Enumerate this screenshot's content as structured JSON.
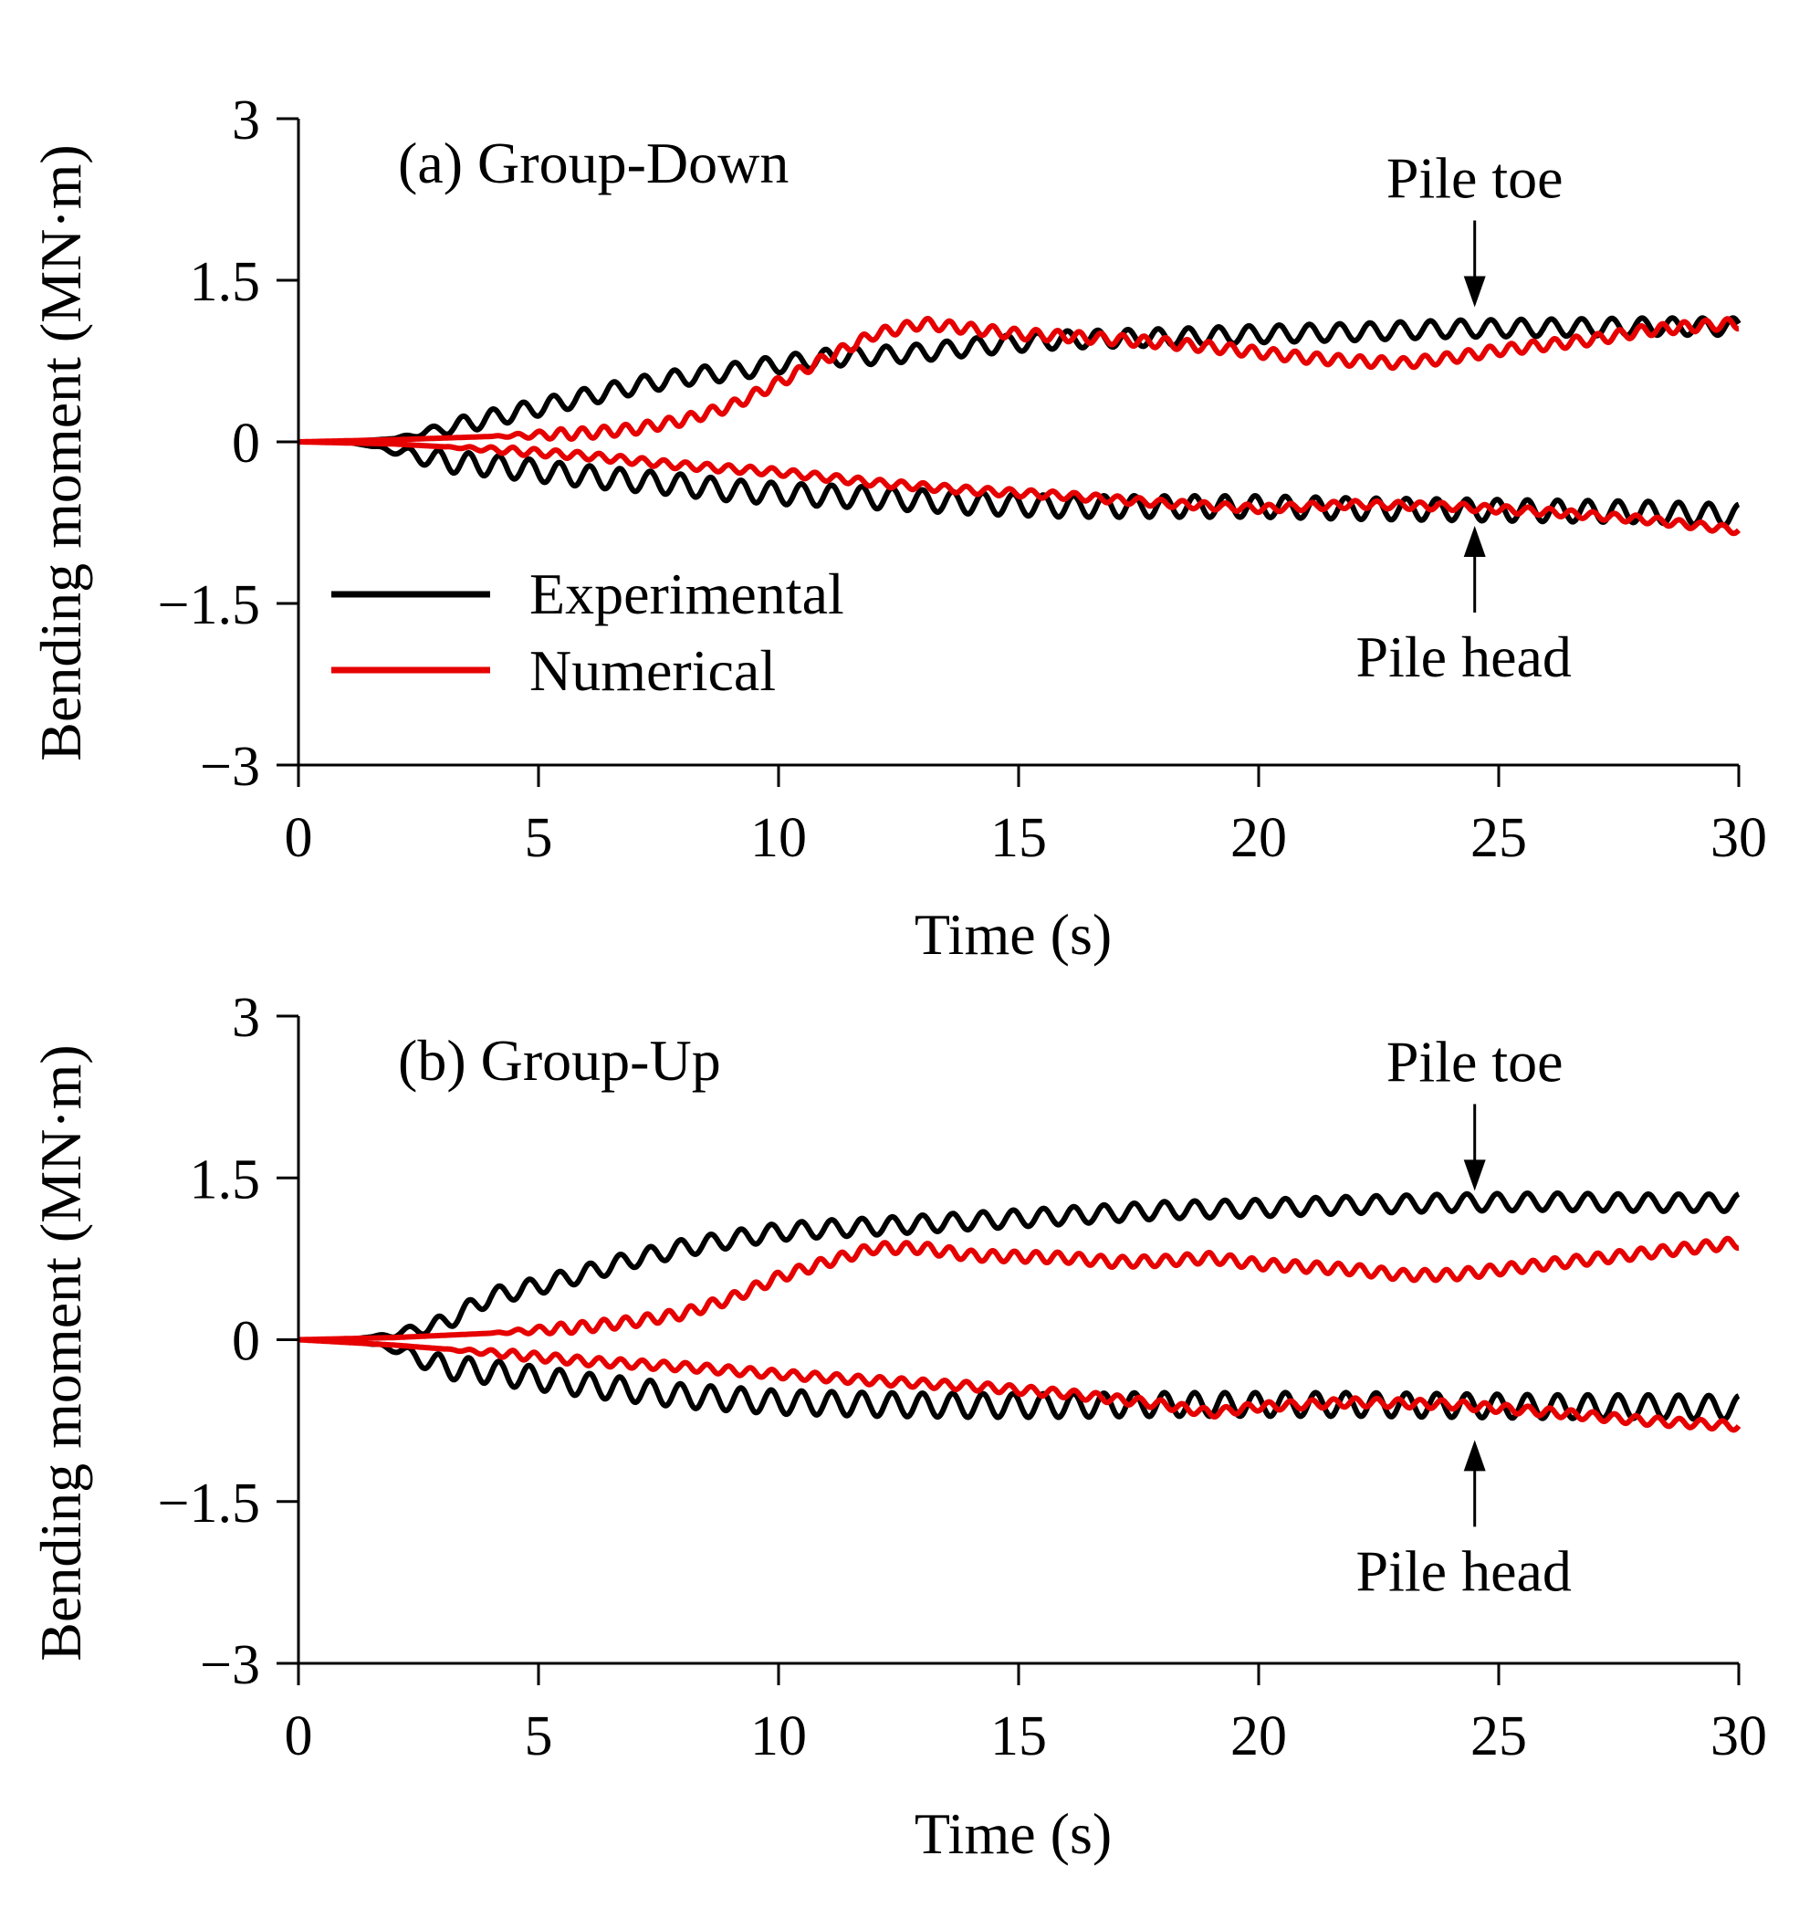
{
  "chart_data": [
    {
      "type": "line",
      "panel_label": "(a) Group-Down",
      "xlabel": "Time (s)",
      "ylabel": "Bending moment (MN·m)",
      "xlim": [
        0,
        30
      ],
      "ylim": [
        -3,
        3
      ],
      "xticks": [
        0,
        5,
        10,
        15,
        20,
        25,
        30
      ],
      "yticks": [
        3,
        1.5,
        0,
        -1.5,
        -3
      ],
      "ytick_labels": [
        "3",
        "1.5",
        "0",
        "−1.5",
        "−3"
      ],
      "grid": false,
      "legend": {
        "placement": "lower-left",
        "entries": [
          {
            "label": "Experimental",
            "color": "#000000"
          },
          {
            "label": "Numerical",
            "color": "#e60000"
          }
        ]
      },
      "annotations": [
        {
          "text": "Pile toe",
          "x": 24.5,
          "y": 1.25,
          "arrow": "down"
        },
        {
          "text": "Pile head",
          "x": 24.5,
          "y": -0.78,
          "arrow": "up"
        }
      ],
      "series": [
        {
          "group": "Experimental",
          "location": "Pile toe",
          "color": "#000000",
          "osc_amp": 0.08,
          "osc_period": 0.63,
          "osc_start": 2.0,
          "points": [
            [
              0,
              0
            ],
            [
              1,
              0
            ],
            [
              2,
              0.03
            ],
            [
              3,
              0.12
            ],
            [
              4,
              0.22
            ],
            [
              5,
              0.32
            ],
            [
              6,
              0.42
            ],
            [
              7,
              0.52
            ],
            [
              8,
              0.6
            ],
            [
              9,
              0.65
            ],
            [
              10,
              0.72
            ],
            [
              11,
              0.78
            ],
            [
              12,
              0.8
            ],
            [
              13,
              0.83
            ],
            [
              14,
              0.88
            ],
            [
              15,
              0.92
            ],
            [
              16,
              0.95
            ],
            [
              18,
              0.97
            ],
            [
              20,
              1.0
            ],
            [
              22,
              1.02
            ],
            [
              24,
              1.05
            ],
            [
              26,
              1.06
            ],
            [
              28,
              1.07
            ],
            [
              30,
              1.07
            ]
          ]
        },
        {
          "group": "Experimental",
          "location": "Pile head",
          "color": "#000000",
          "osc_amp": 0.1,
          "osc_period": 0.63,
          "osc_start": 1.5,
          "points": [
            [
              0,
              0
            ],
            [
              1,
              0
            ],
            [
              2,
              -0.08
            ],
            [
              3,
              -0.18
            ],
            [
              4,
              -0.22
            ],
            [
              5,
              -0.27
            ],
            [
              6,
              -0.32
            ],
            [
              7,
              -0.36
            ],
            [
              8,
              -0.4
            ],
            [
              9,
              -0.45
            ],
            [
              10,
              -0.48
            ],
            [
              12,
              -0.52
            ],
            [
              14,
              -0.57
            ],
            [
              16,
              -0.6
            ],
            [
              18,
              -0.6
            ],
            [
              20,
              -0.6
            ],
            [
              22,
              -0.62
            ],
            [
              24,
              -0.63
            ],
            [
              26,
              -0.64
            ],
            [
              28,
              -0.65
            ],
            [
              30,
              -0.68
            ]
          ]
        },
        {
          "group": "Numerical",
          "location": "Pile toe",
          "color": "#e60000",
          "osc_amp": 0.05,
          "osc_period": 0.45,
          "osc_start": 4.0,
          "points": [
            [
              0,
              0
            ],
            [
              2,
              0.02
            ],
            [
              4,
              0.05
            ],
            [
              6,
              0.08
            ],
            [
              7,
              0.12
            ],
            [
              8,
              0.2
            ],
            [
              9,
              0.33
            ],
            [
              10,
              0.55
            ],
            [
              11,
              0.78
            ],
            [
              12,
              1.0
            ],
            [
              13,
              1.1
            ],
            [
              14,
              1.05
            ],
            [
              15,
              1.0
            ],
            [
              16,
              0.98
            ],
            [
              17,
              0.95
            ],
            [
              18,
              0.92
            ],
            [
              19,
              0.88
            ],
            [
              20,
              0.83
            ],
            [
              21,
              0.78
            ],
            [
              22,
              0.75
            ],
            [
              23,
              0.73
            ],
            [
              24,
              0.78
            ],
            [
              25,
              0.85
            ],
            [
              26,
              0.9
            ],
            [
              27,
              0.95
            ],
            [
              28,
              1.03
            ],
            [
              29,
              1.07
            ],
            [
              30,
              1.1
            ]
          ]
        },
        {
          "group": "Numerical",
          "location": "Pile head",
          "color": "#e60000",
          "osc_amp": 0.035,
          "osc_period": 0.45,
          "osc_start": 3.0,
          "points": [
            [
              0,
              0
            ],
            [
              2,
              -0.02
            ],
            [
              4,
              -0.07
            ],
            [
              6,
              -0.13
            ],
            [
              8,
              -0.22
            ],
            [
              10,
              -0.28
            ],
            [
              12,
              -0.38
            ],
            [
              14,
              -0.45
            ],
            [
              16,
              -0.5
            ],
            [
              18,
              -0.57
            ],
            [
              20,
              -0.62
            ],
            [
              22,
              -0.58
            ],
            [
              24,
              -0.6
            ],
            [
              26,
              -0.65
            ],
            [
              28,
              -0.72
            ],
            [
              30,
              -0.82
            ]
          ]
        }
      ]
    },
    {
      "type": "line",
      "panel_label": "(b) Group-Up",
      "xlabel": "Time (s)",
      "ylabel": "Bending moment (MN·m)",
      "xlim": [
        0,
        30
      ],
      "ylim": [
        -3,
        3
      ],
      "xticks": [
        0,
        5,
        10,
        15,
        20,
        25,
        30
      ],
      "yticks": [
        3,
        1.5,
        0,
        -1.5,
        -3
      ],
      "ytick_labels": [
        "3",
        "1.5",
        "0",
        "−1.5",
        "−3"
      ],
      "grid": false,
      "legend": null,
      "annotations": [
        {
          "text": "Pile toe",
          "x": 24.5,
          "y": 1.38,
          "arrow": "down"
        },
        {
          "text": "Pile head",
          "x": 24.5,
          "y": -0.93,
          "arrow": "up"
        }
      ],
      "series": [
        {
          "group": "Experimental",
          "location": "Pile toe",
          "color": "#000000",
          "osc_amp": 0.08,
          "osc_period": 0.63,
          "osc_start": 1.5,
          "points": [
            [
              0,
              0
            ],
            [
              1,
              0
            ],
            [
              2,
              0.05
            ],
            [
              3,
              0.15
            ],
            [
              4,
              0.4
            ],
            [
              5,
              0.5
            ],
            [
              6,
              0.62
            ],
            [
              7,
              0.75
            ],
            [
              8,
              0.85
            ],
            [
              9,
              0.93
            ],
            [
              10,
              1.0
            ],
            [
              11,
              1.03
            ],
            [
              12,
              1.05
            ],
            [
              14,
              1.1
            ],
            [
              16,
              1.15
            ],
            [
              18,
              1.2
            ],
            [
              20,
              1.22
            ],
            [
              22,
              1.25
            ],
            [
              24,
              1.27
            ],
            [
              26,
              1.28
            ],
            [
              28,
              1.27
            ],
            [
              30,
              1.27
            ]
          ]
        },
        {
          "group": "Experimental",
          "location": "Pile head",
          "color": "#000000",
          "osc_amp": 0.11,
          "osc_period": 0.63,
          "osc_start": 1.5,
          "points": [
            [
              0,
              0
            ],
            [
              1,
              0
            ],
            [
              2,
              -0.08
            ],
            [
              3,
              -0.25
            ],
            [
              4,
              -0.3
            ],
            [
              5,
              -0.36
            ],
            [
              6,
              -0.42
            ],
            [
              7,
              -0.47
            ],
            [
              8,
              -0.52
            ],
            [
              9,
              -0.55
            ],
            [
              10,
              -0.58
            ],
            [
              12,
              -0.6
            ],
            [
              14,
              -0.61
            ],
            [
              16,
              -0.61
            ],
            [
              18,
              -0.6
            ],
            [
              20,
              -0.6
            ],
            [
              22,
              -0.6
            ],
            [
              24,
              -0.61
            ],
            [
              26,
              -0.62
            ],
            [
              28,
              -0.62
            ],
            [
              30,
              -0.63
            ]
          ]
        },
        {
          "group": "Numerical",
          "location": "Pile toe",
          "color": "#e60000",
          "osc_amp": 0.05,
          "osc_period": 0.45,
          "osc_start": 4.0,
          "points": [
            [
              0,
              0
            ],
            [
              2,
              0.02
            ],
            [
              4,
              0.06
            ],
            [
              6,
              0.12
            ],
            [
              7,
              0.17
            ],
            [
              8,
              0.24
            ],
            [
              9,
              0.38
            ],
            [
              10,
              0.58
            ],
            [
              11,
              0.72
            ],
            [
              12,
              0.85
            ],
            [
              13,
              0.85
            ],
            [
              14,
              0.78
            ],
            [
              15,
              0.77
            ],
            [
              16,
              0.76
            ],
            [
              17,
              0.72
            ],
            [
              18,
              0.73
            ],
            [
              19,
              0.76
            ],
            [
              20,
              0.7
            ],
            [
              22,
              0.65
            ],
            [
              23,
              0.6
            ],
            [
              24,
              0.6
            ],
            [
              25,
              0.65
            ],
            [
              26,
              0.7
            ],
            [
              28,
              0.8
            ],
            [
              30,
              0.9
            ]
          ]
        },
        {
          "group": "Numerical",
          "location": "Pile head",
          "color": "#e60000",
          "osc_amp": 0.04,
          "osc_period": 0.45,
          "osc_start": 3.0,
          "points": [
            [
              0,
              0
            ],
            [
              2,
              -0.05
            ],
            [
              4,
              -0.12
            ],
            [
              6,
              -0.2
            ],
            [
              8,
              -0.25
            ],
            [
              10,
              -0.32
            ],
            [
              12,
              -0.38
            ],
            [
              14,
              -0.43
            ],
            [
              16,
              -0.5
            ],
            [
              18,
              -0.6
            ],
            [
              19,
              -0.68
            ],
            [
              20,
              -0.62
            ],
            [
              22,
              -0.58
            ],
            [
              24,
              -0.6
            ],
            [
              26,
              -0.67
            ],
            [
              28,
              -0.75
            ],
            [
              30,
              -0.8
            ]
          ]
        }
      ]
    }
  ]
}
